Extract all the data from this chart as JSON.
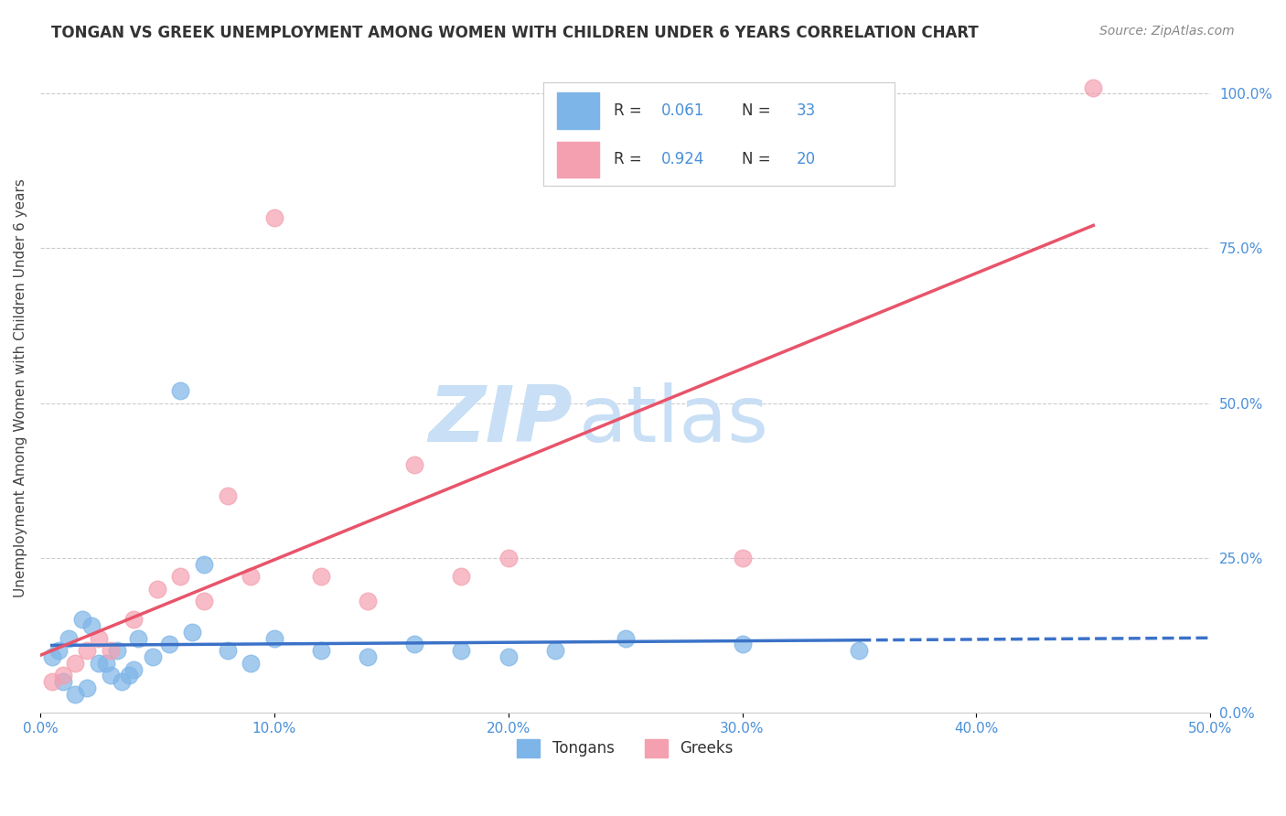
{
  "title": "TONGAN VS GREEK UNEMPLOYMENT AMONG WOMEN WITH CHILDREN UNDER 6 YEARS CORRELATION CHART",
  "source": "Source: ZipAtlas.com",
  "ylabel": "Unemployment Among Women with Children Under 6 years",
  "legend_tongans": "Tongans",
  "legend_greeks": "Greeks",
  "R_tongan": 0.061,
  "N_tongan": 33,
  "R_greek": 0.924,
  "N_greek": 20,
  "xlim": [
    0.0,
    0.5
  ],
  "ylim": [
    0.0,
    1.05
  ],
  "xticks": [
    0.0,
    0.1,
    0.2,
    0.3,
    0.4,
    0.5
  ],
  "yticks_right": [
    0.0,
    0.25,
    0.5,
    0.75,
    1.0
  ],
  "color_tongan": "#7eb5e8",
  "color_greek": "#f4a0b0",
  "color_tongan_line": "#3b72c8",
  "color_greek_line": "#e8546a",
  "watermark_zip": "ZIP",
  "watermark_atlas": "atlas",
  "watermark_color": "#c8dff5",
  "tongan_x": [
    0.01,
    0.015,
    0.02,
    0.025,
    0.03,
    0.035,
    0.04,
    0.005,
    0.008,
    0.012,
    0.018,
    0.022,
    0.028,
    0.033,
    0.038,
    0.042,
    0.048,
    0.055,
    0.06,
    0.065,
    0.07,
    0.08,
    0.09,
    0.1,
    0.12,
    0.14,
    0.16,
    0.18,
    0.2,
    0.22,
    0.25,
    0.3,
    0.35
  ],
  "tongan_y": [
    0.05,
    0.03,
    0.04,
    0.08,
    0.06,
    0.05,
    0.07,
    0.09,
    0.1,
    0.12,
    0.15,
    0.14,
    0.08,
    0.1,
    0.06,
    0.12,
    0.09,
    0.11,
    0.52,
    0.13,
    0.24,
    0.1,
    0.08,
    0.12,
    0.1,
    0.09,
    0.11,
    0.1,
    0.09,
    0.1,
    0.12,
    0.11,
    0.1
  ],
  "greek_x": [
    0.005,
    0.01,
    0.015,
    0.02,
    0.025,
    0.03,
    0.04,
    0.05,
    0.06,
    0.07,
    0.08,
    0.09,
    0.1,
    0.12,
    0.14,
    0.16,
    0.18,
    0.2,
    0.3,
    0.45
  ],
  "greek_y": [
    0.05,
    0.06,
    0.08,
    0.1,
    0.12,
    0.1,
    0.15,
    0.2,
    0.22,
    0.18,
    0.35,
    0.22,
    0.8,
    0.22,
    0.18,
    0.4,
    0.22,
    0.25,
    0.25,
    1.01
  ]
}
